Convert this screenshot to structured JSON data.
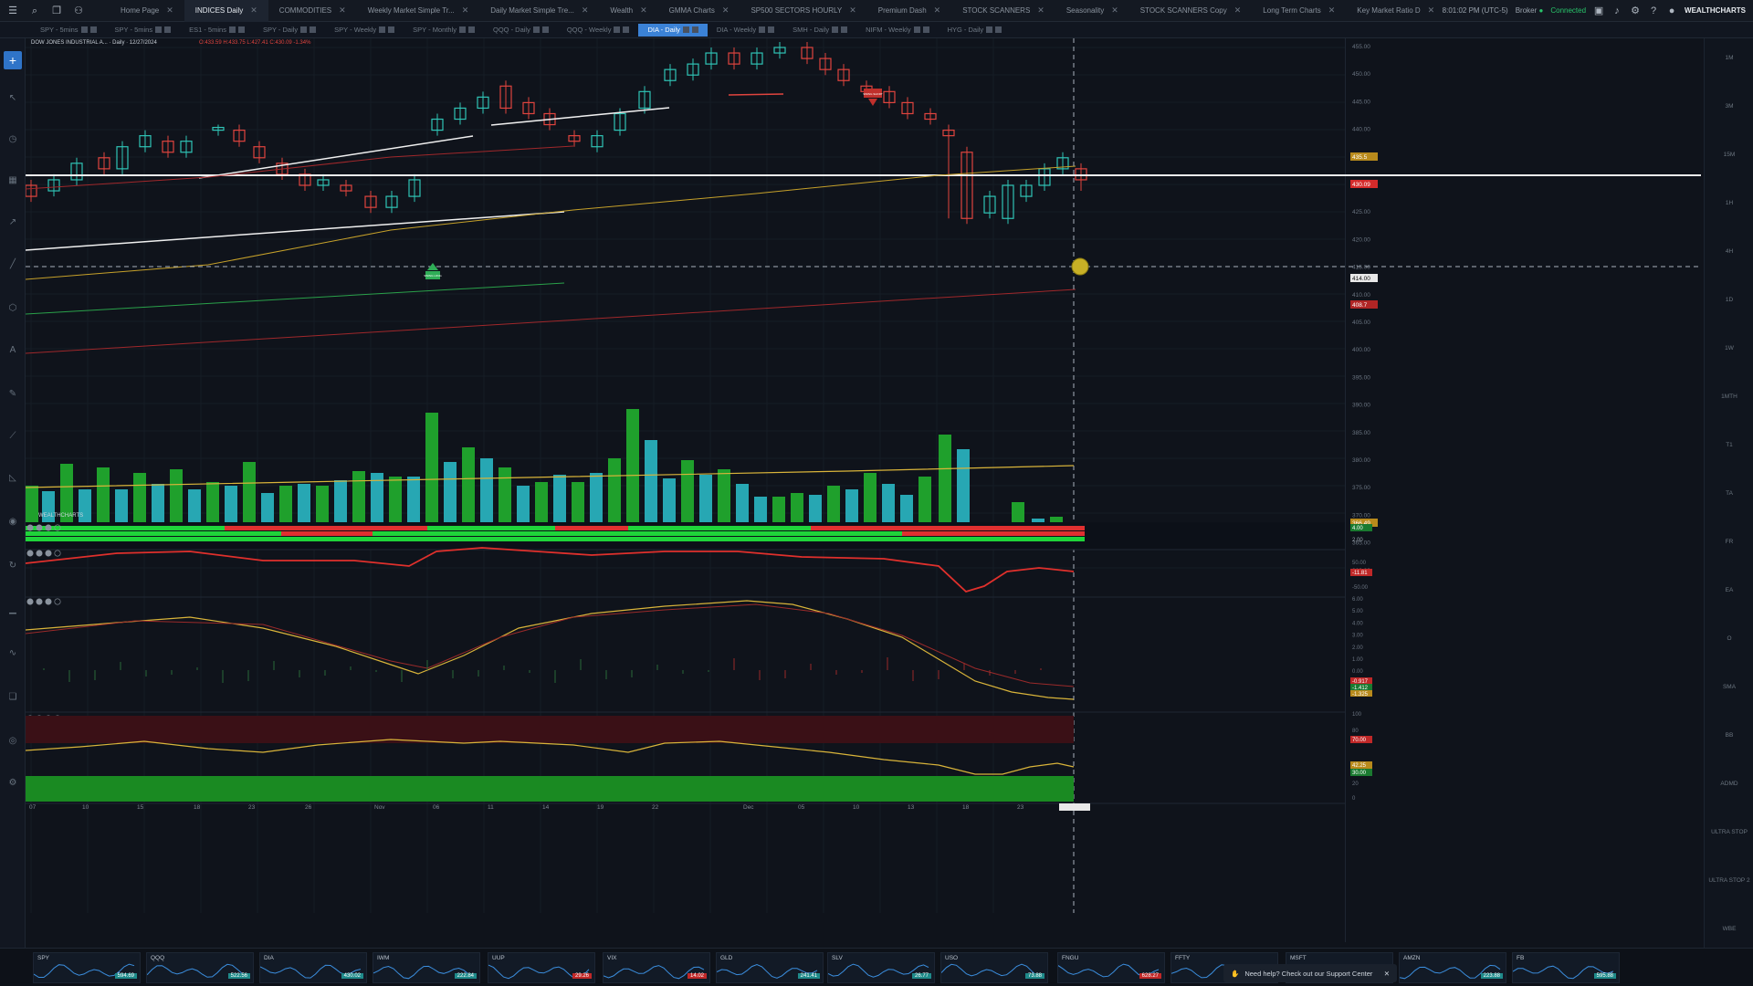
{
  "topbar": {
    "tabs": [
      "Home Page",
      "INDICES Daily",
      "COMMODITIES",
      "Weekly Market Simple Tr...",
      "Daily Market Simple Tre...",
      "Wealth",
      "GMMA Charts",
      "SP500 SECTORS HOURLY",
      "Premium Dash",
      "STOCK SCANNERS",
      "Seasonality",
      "STOCK SCANNERS Copy",
      "Long Term Charts",
      "Key Market Ratio D"
    ],
    "active_tab": 1,
    "time": "8:01:02 PM  (UTC-5)",
    "broker": "Broker",
    "connected": "Connected",
    "brand": "WEALTHCHARTS"
  },
  "subtabs": {
    "items": [
      "SPY - 5mins",
      "SPY - 5mins",
      "ES1 - 5mins",
      "SPY - Daily",
      "SPY - Weekly",
      "SPY - Monthly",
      "QQQ - Daily",
      "QQQ - Weekly",
      "DIA - Daily",
      "DIA - Weekly",
      "SMH - Daily",
      "NIFM - Weekly",
      "HYG - Daily"
    ],
    "active": 8
  },
  "chart": {
    "symbol_line": "DOW JONES INDUSTRIAL A... · Daily · 12/27/2024",
    "ohlc": "O:433.59 H:433.75 L:427.41 C:430.09  -1.34%",
    "watermark": "WEALTHCHARTS",
    "price_axis": [
      "455.00",
      "450.00",
      "445.00",
      "440.00",
      "435.00",
      "430.00",
      "425.00",
      "420.00",
      "415.00",
      "410.00",
      "405.00",
      "400.00",
      "395.00",
      "390.00",
      "385.00",
      "380.00",
      "375.00",
      "370.00",
      "365.00",
      "360.00"
    ],
    "price_tags": [
      {
        "text": "435.5",
        "color": "#b88a1c"
      },
      {
        "text": "430.09",
        "color": "#d42b2b"
      },
      {
        "text": "414.00",
        "color": "#e8e8e8"
      },
      {
        "text": "408.7",
        "color": "#b02525"
      },
      {
        "text": "366.49",
        "color": "#b88a1c"
      }
    ],
    "signal_labels": {
      "sell": "SWING SHORT",
      "buy": "SWING LONG"
    },
    "x_labels": [
      "07",
      "10",
      "15",
      "18",
      "23",
      "26",
      "Nov",
      "06",
      "11",
      "14",
      "19",
      "22",
      "Dec",
      "05",
      "10",
      "13",
      "18",
      "23"
    ],
    "osc1_axis": [
      "4.00",
      "2.00"
    ],
    "osc2_axis": [
      "50.00",
      "-11.81",
      "-50.00"
    ],
    "osc3_axis": [
      "6.00",
      "5.00",
      "4.00",
      "3.00",
      "2.00",
      "1.00",
      "0.00",
      "-0.917",
      "-1.412",
      "-1.325"
    ],
    "osc4_axis": [
      "100",
      "80",
      "70.00",
      "42.25",
      "30.00",
      "20",
      "0"
    ],
    "right_labels": [
      "1M",
      "3M",
      "15M",
      "1H",
      "4H",
      "1D",
      "1W",
      "1MTH",
      "T1",
      "TA",
      "FR",
      "EA",
      "O",
      "SMA",
      "BB",
      "ADMD",
      "ULTRA STOP",
      "ULTRA STOP 2",
      "WBE"
    ]
  },
  "dock": {
    "items": [
      {
        "sym": "SPY",
        "price": "594.69",
        "up": true
      },
      {
        "sym": "QQQ",
        "price": "522.56",
        "up": true
      },
      {
        "sym": "DIA",
        "price": "430.02",
        "up": true
      },
      {
        "sym": "IWM",
        "price": "222.84",
        "up": true
      },
      {
        "sym": "UUP",
        "price": "29.26",
        "up": false
      },
      {
        "sym": "VIX",
        "price": "14.02",
        "up": false
      },
      {
        "sym": "GLD",
        "price": "241.41",
        "up": true
      },
      {
        "sym": "SLV",
        "price": "26.77",
        "up": true
      },
      {
        "sym": "USO",
        "price": "73.88",
        "up": true
      },
      {
        "sym": "FNGU",
        "price": "628.27",
        "up": false
      },
      {
        "sym": "FFTY",
        "price": "",
        "up": true
      },
      {
        "sym": "MSFT",
        "price": "",
        "up": true
      },
      {
        "sym": "AMZN",
        "price": "223.88",
        "up": true
      },
      {
        "sym": "FB",
        "price": "595.88",
        "up": true
      }
    ],
    "help_text": "Need help? Check out our Support Center"
  }
}
